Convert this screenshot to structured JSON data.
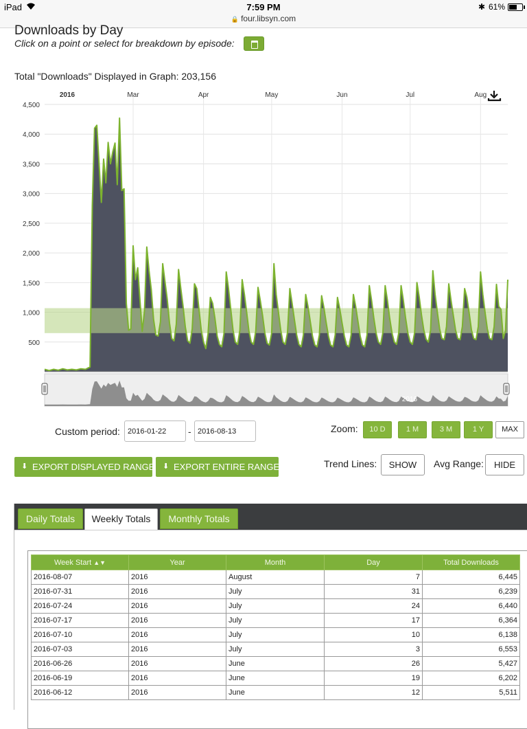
{
  "status_bar": {
    "device": "iPad",
    "time": "7:59 PM",
    "url": "four.libsyn.com",
    "battery": "61%",
    "battery_level": 0.61
  },
  "header": {
    "title": "Downloads by Day",
    "subtitle": "Click on a point or select for breakdown by episode:",
    "calendar_icon": "calendar-icon",
    "total_label": "Total \"Downloads\" Displayed in Graph: 203,156"
  },
  "chart_data": {
    "type": "area",
    "title": "",
    "xlabel": "",
    "ylabel": "",
    "ylim": [
      0,
      4500
    ],
    "y_ticks": [
      500,
      1000,
      1500,
      2000,
      2500,
      3000,
      3500,
      4000,
      4500
    ],
    "y_tick_labels": [
      "500",
      "1,000",
      "1,500",
      "2,000",
      "2,500",
      "3,000",
      "3,500",
      "4,000",
      "4,500"
    ],
    "x_start": "2016-01-22",
    "x_end": "2016-08-13",
    "month_labels": [
      {
        "label": "2016",
        "date": "2016-01-22",
        "bold": true
      },
      {
        "label": "Mar",
        "date": "2016-03-01"
      },
      {
        "label": "Apr",
        "date": "2016-04-01"
      },
      {
        "label": "May",
        "date": "2016-05-01"
      },
      {
        "label": "Jun",
        "date": "2016-06-01"
      },
      {
        "label": "Jul",
        "date": "2016-07-01"
      },
      {
        "label": "Aug",
        "date": "2016-08-01"
      }
    ],
    "avg_band": [
      650,
      1070
    ],
    "grid": true,
    "fill_color": "#4e5260",
    "line_color": "#7db32f",
    "band_color": "#b9d68c",
    "series": [
      {
        "values": [
          {
            "x": "2016-01-22",
            "y": 40
          },
          {
            "x": "2016-01-24",
            "y": 20
          },
          {
            "x": "2016-01-26",
            "y": 40
          },
          {
            "x": "2016-01-28",
            "y": 25
          },
          {
            "x": "2016-01-30",
            "y": 50
          },
          {
            "x": "2016-02-01",
            "y": 30
          },
          {
            "x": "2016-02-03",
            "y": 40
          },
          {
            "x": "2016-02-05",
            "y": 30
          },
          {
            "x": "2016-02-07",
            "y": 50
          },
          {
            "x": "2016-02-09",
            "y": 40
          },
          {
            "x": "2016-02-11",
            "y": 80
          },
          {
            "x": "2016-02-12",
            "y": 2800
          },
          {
            "x": "2016-02-13",
            "y": 4100
          },
          {
            "x": "2016-02-14",
            "y": 4150
          },
          {
            "x": "2016-02-15",
            "y": 3500
          },
          {
            "x": "2016-02-16",
            "y": 2850
          },
          {
            "x": "2016-02-17",
            "y": 3580
          },
          {
            "x": "2016-02-18",
            "y": 3180
          },
          {
            "x": "2016-02-19",
            "y": 3860
          },
          {
            "x": "2016-02-20",
            "y": 3500
          },
          {
            "x": "2016-02-21",
            "y": 3700
          },
          {
            "x": "2016-02-22",
            "y": 3850
          },
          {
            "x": "2016-02-23",
            "y": 3150
          },
          {
            "x": "2016-02-24",
            "y": 4270
          },
          {
            "x": "2016-02-25",
            "y": 3050
          },
          {
            "x": "2016-02-26",
            "y": 3080
          },
          {
            "x": "2016-02-27",
            "y": 1150
          },
          {
            "x": "2016-02-28",
            "y": 700
          },
          {
            "x": "2016-02-29",
            "y": 720
          },
          {
            "x": "2016-03-01",
            "y": 2120
          },
          {
            "x": "2016-03-02",
            "y": 1550
          },
          {
            "x": "2016-03-03",
            "y": 1750
          },
          {
            "x": "2016-03-04",
            "y": 1200
          },
          {
            "x": "2016-03-05",
            "y": 680
          },
          {
            "x": "2016-03-06",
            "y": 1030
          },
          {
            "x": "2016-03-07",
            "y": 2100
          },
          {
            "x": "2016-03-08",
            "y": 1700
          },
          {
            "x": "2016-03-09",
            "y": 1380
          },
          {
            "x": "2016-03-10",
            "y": 880
          },
          {
            "x": "2016-03-11",
            "y": 620
          },
          {
            "x": "2016-03-12",
            "y": 600
          },
          {
            "x": "2016-03-13",
            "y": 840
          },
          {
            "x": "2016-03-14",
            "y": 1820
          },
          {
            "x": "2016-03-15",
            "y": 1520
          },
          {
            "x": "2016-03-16",
            "y": 1220
          },
          {
            "x": "2016-03-17",
            "y": 820
          },
          {
            "x": "2016-03-18",
            "y": 560
          },
          {
            "x": "2016-03-19",
            "y": 520
          },
          {
            "x": "2016-03-20",
            "y": 800
          },
          {
            "x": "2016-03-21",
            "y": 1720
          },
          {
            "x": "2016-03-22",
            "y": 1400
          },
          {
            "x": "2016-03-23",
            "y": 1100
          },
          {
            "x": "2016-03-24",
            "y": 750
          },
          {
            "x": "2016-03-25",
            "y": 520
          },
          {
            "x": "2016-03-26",
            "y": 480
          },
          {
            "x": "2016-03-27",
            "y": 720
          },
          {
            "x": "2016-03-28",
            "y": 1480
          },
          {
            "x": "2016-03-29",
            "y": 1400
          },
          {
            "x": "2016-03-30",
            "y": 1050
          },
          {
            "x": "2016-03-31",
            "y": 700
          },
          {
            "x": "2016-04-01",
            "y": 500
          },
          {
            "x": "2016-04-02",
            "y": 390
          },
          {
            "x": "2016-04-03",
            "y": 640
          },
          {
            "x": "2016-04-04",
            "y": 1250
          },
          {
            "x": "2016-04-05",
            "y": 1150
          },
          {
            "x": "2016-04-06",
            "y": 900
          },
          {
            "x": "2016-04-07",
            "y": 600
          },
          {
            "x": "2016-04-08",
            "y": 460
          },
          {
            "x": "2016-04-09",
            "y": 420
          },
          {
            "x": "2016-04-10",
            "y": 640
          },
          {
            "x": "2016-04-11",
            "y": 1680
          },
          {
            "x": "2016-04-12",
            "y": 1400
          },
          {
            "x": "2016-04-13",
            "y": 1050
          },
          {
            "x": "2016-04-14",
            "y": 700
          },
          {
            "x": "2016-04-15",
            "y": 500
          },
          {
            "x": "2016-04-16",
            "y": 460
          },
          {
            "x": "2016-04-17",
            "y": 700
          },
          {
            "x": "2016-04-18",
            "y": 1550
          },
          {
            "x": "2016-04-19",
            "y": 1300
          },
          {
            "x": "2016-04-20",
            "y": 1000
          },
          {
            "x": "2016-04-21",
            "y": 680
          },
          {
            "x": "2016-04-22",
            "y": 500
          },
          {
            "x": "2016-04-23",
            "y": 460
          },
          {
            "x": "2016-04-24",
            "y": 680
          },
          {
            "x": "2016-04-25",
            "y": 1420
          },
          {
            "x": "2016-04-26",
            "y": 1200
          },
          {
            "x": "2016-04-27",
            "y": 950
          },
          {
            "x": "2016-04-28",
            "y": 650
          },
          {
            "x": "2016-04-29",
            "y": 480
          },
          {
            "x": "2016-04-30",
            "y": 450
          },
          {
            "x": "2016-05-01",
            "y": 650
          },
          {
            "x": "2016-05-02",
            "y": 1820
          },
          {
            "x": "2016-05-03",
            "y": 1300
          },
          {
            "x": "2016-05-04",
            "y": 1000
          },
          {
            "x": "2016-05-05",
            "y": 700
          },
          {
            "x": "2016-05-06",
            "y": 500
          },
          {
            "x": "2016-05-07",
            "y": 460
          },
          {
            "x": "2016-05-08",
            "y": 660
          },
          {
            "x": "2016-05-09",
            "y": 1400
          },
          {
            "x": "2016-05-10",
            "y": 1150
          },
          {
            "x": "2016-05-11",
            "y": 880
          },
          {
            "x": "2016-05-12",
            "y": 620
          },
          {
            "x": "2016-05-13",
            "y": 460
          },
          {
            "x": "2016-05-14",
            "y": 420
          },
          {
            "x": "2016-05-15",
            "y": 620
          },
          {
            "x": "2016-05-16",
            "y": 1300
          },
          {
            "x": "2016-05-17",
            "y": 1100
          },
          {
            "x": "2016-05-18",
            "y": 850
          },
          {
            "x": "2016-05-19",
            "y": 600
          },
          {
            "x": "2016-05-20",
            "y": 450
          },
          {
            "x": "2016-05-21",
            "y": 420
          },
          {
            "x": "2016-05-22",
            "y": 620
          },
          {
            "x": "2016-05-23",
            "y": 1280
          },
          {
            "x": "2016-05-24",
            "y": 1080
          },
          {
            "x": "2016-05-25",
            "y": 830
          },
          {
            "x": "2016-05-26",
            "y": 600
          },
          {
            "x": "2016-05-27",
            "y": 450
          },
          {
            "x": "2016-05-28",
            "y": 420
          },
          {
            "x": "2016-05-29",
            "y": 620
          },
          {
            "x": "2016-05-30",
            "y": 1250
          },
          {
            "x": "2016-05-31",
            "y": 1060
          },
          {
            "x": "2016-06-01",
            "y": 820
          },
          {
            "x": "2016-06-02",
            "y": 600
          },
          {
            "x": "2016-06-03",
            "y": 450
          },
          {
            "x": "2016-06-04",
            "y": 420
          },
          {
            "x": "2016-06-05",
            "y": 620
          },
          {
            "x": "2016-06-06",
            "y": 1300
          },
          {
            "x": "2016-06-07",
            "y": 1100
          },
          {
            "x": "2016-06-08",
            "y": 850
          },
          {
            "x": "2016-06-09",
            "y": 600
          },
          {
            "x": "2016-06-10",
            "y": 450
          },
          {
            "x": "2016-06-11",
            "y": 420
          },
          {
            "x": "2016-06-12",
            "y": 620
          },
          {
            "x": "2016-06-13",
            "y": 1450
          },
          {
            "x": "2016-06-14",
            "y": 1200
          },
          {
            "x": "2016-06-15",
            "y": 900
          },
          {
            "x": "2016-06-16",
            "y": 650
          },
          {
            "x": "2016-06-17",
            "y": 500
          },
          {
            "x": "2016-06-18",
            "y": 460
          },
          {
            "x": "2016-06-19",
            "y": 660
          },
          {
            "x": "2016-06-20",
            "y": 1450
          },
          {
            "x": "2016-06-21",
            "y": 1200
          },
          {
            "x": "2016-06-22",
            "y": 900
          },
          {
            "x": "2016-06-23",
            "y": 650
          },
          {
            "x": "2016-06-24",
            "y": 500
          },
          {
            "x": "2016-06-25",
            "y": 460
          },
          {
            "x": "2016-06-26",
            "y": 660
          },
          {
            "x": "2016-06-27",
            "y": 1450
          },
          {
            "x": "2016-06-28",
            "y": 1200
          },
          {
            "x": "2016-06-29",
            "y": 900
          },
          {
            "x": "2016-06-30",
            "y": 650
          },
          {
            "x": "2016-07-01",
            "y": 500
          },
          {
            "x": "2016-07-02",
            "y": 460
          },
          {
            "x": "2016-07-03",
            "y": 660
          },
          {
            "x": "2016-07-04",
            "y": 1500
          },
          {
            "x": "2016-07-05",
            "y": 1250
          },
          {
            "x": "2016-07-06",
            "y": 950
          },
          {
            "x": "2016-07-07",
            "y": 700
          },
          {
            "x": "2016-07-08",
            "y": 550
          },
          {
            "x": "2016-07-09",
            "y": 500
          },
          {
            "x": "2016-07-10",
            "y": 700
          },
          {
            "x": "2016-07-11",
            "y": 1700
          },
          {
            "x": "2016-07-12",
            "y": 1300
          },
          {
            "x": "2016-07-13",
            "y": 1000
          },
          {
            "x": "2016-07-14",
            "y": 720
          },
          {
            "x": "2016-07-15",
            "y": 560
          },
          {
            "x": "2016-07-16",
            "y": 540
          },
          {
            "x": "2016-07-17",
            "y": 760
          },
          {
            "x": "2016-07-18",
            "y": 1480
          },
          {
            "x": "2016-07-19",
            "y": 1200
          },
          {
            "x": "2016-07-20",
            "y": 950
          },
          {
            "x": "2016-07-21",
            "y": 700
          },
          {
            "x": "2016-07-22",
            "y": 560
          },
          {
            "x": "2016-07-23",
            "y": 540
          },
          {
            "x": "2016-07-24",
            "y": 760
          },
          {
            "x": "2016-07-25",
            "y": 1400
          },
          {
            "x": "2016-07-26",
            "y": 1250
          },
          {
            "x": "2016-07-27",
            "y": 980
          },
          {
            "x": "2016-07-28",
            "y": 700
          },
          {
            "x": "2016-07-29",
            "y": 560
          },
          {
            "x": "2016-07-30",
            "y": 540
          },
          {
            "x": "2016-07-31",
            "y": 760
          },
          {
            "x": "2016-08-01",
            "y": 1680
          },
          {
            "x": "2016-08-02",
            "y": 1300
          },
          {
            "x": "2016-08-03",
            "y": 1000
          },
          {
            "x": "2016-08-04",
            "y": 720
          },
          {
            "x": "2016-08-05",
            "y": 560
          },
          {
            "x": "2016-08-06",
            "y": 540
          },
          {
            "x": "2016-08-07",
            "y": 760
          },
          {
            "x": "2016-08-08",
            "y": 1470
          },
          {
            "x": "2016-08-09",
            "y": 1100
          },
          {
            "x": "2016-08-10",
            "y": 1050
          },
          {
            "x": "2016-08-11",
            "y": 560
          },
          {
            "x": "2016-08-12",
            "y": 700
          },
          {
            "x": "2016-08-13",
            "y": 1550
          }
        ]
      }
    ]
  },
  "navigator": {
    "year_label": "2016",
    "handle_left_icon": "grip-handle-icon",
    "handle_right_icon": "grip-handle-icon"
  },
  "export_icon": "download-icon",
  "controls": {
    "custom_period_label": "Custom period:",
    "start_date": "2016-01-22",
    "end_date": "2016-08-13",
    "date_separator": "-",
    "zoom_label": "Zoom:",
    "zoom_options": [
      "10 D",
      "1 M",
      "3 M",
      "1 Y",
      "MAX"
    ],
    "zoom_active": "MAX",
    "export_displayed": "EXPORT DISPLAYED RANGE",
    "export_entire": "EXPORT ENTIRE RANGE",
    "trend_lines_label": "Trend Lines:",
    "trend_lines_button": "SHOW",
    "avg_range_label": "Avg Range:",
    "avg_range_button": "HIDE"
  },
  "totals": {
    "tabs": [
      "Daily Totals",
      "Weekly Totals",
      "Monthly Totals"
    ],
    "active_tab": "Weekly Totals",
    "columns": [
      "Week Start",
      "Year",
      "Month",
      "Day",
      "Total Downloads"
    ],
    "sort_icon": "sort-icon",
    "rows": [
      [
        "2016-08-07",
        "2016",
        "August",
        "7",
        "6,445"
      ],
      [
        "2016-07-31",
        "2016",
        "July",
        "31",
        "6,239"
      ],
      [
        "2016-07-24",
        "2016",
        "July",
        "24",
        "6,440"
      ],
      [
        "2016-07-17",
        "2016",
        "July",
        "17",
        "6,364"
      ],
      [
        "2016-07-10",
        "2016",
        "July",
        "10",
        "6,138"
      ],
      [
        "2016-07-03",
        "2016",
        "July",
        "3",
        "6,553"
      ],
      [
        "2016-06-26",
        "2016",
        "June",
        "26",
        "5,427"
      ],
      [
        "2016-06-19",
        "2016",
        "June",
        "19",
        "6,202"
      ],
      [
        "2016-06-12",
        "2016",
        "June",
        "12",
        "5,511"
      ]
    ]
  }
}
